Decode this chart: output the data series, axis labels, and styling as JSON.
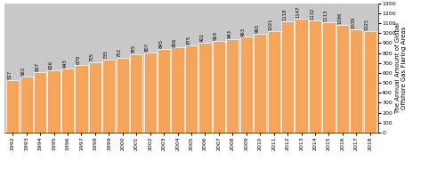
{
  "years": [
    1992,
    1993,
    1994,
    1995,
    1996,
    1997,
    1998,
    1999,
    2000,
    2001,
    2002,
    2003,
    2004,
    2005,
    2006,
    2007,
    2008,
    2009,
    2010,
    2011,
    2012,
    2013,
    2014,
    2015,
    2016,
    2017,
    2018
  ],
  "values": [
    527,
    563,
    607,
    626,
    645,
    679,
    705,
    735,
    752,
    785,
    807,
    845,
    856,
    875,
    902,
    924,
    943,
    963,
    993,
    1021,
    1118,
    1147,
    1132,
    1113,
    1086,
    1039,
    1021
  ],
  "bar_color": "#F5A55A",
  "bg_color": "#C8C8C8",
  "ylim": [
    0,
    1300
  ],
  "yticks": [
    0,
    100,
    200,
    300,
    400,
    500,
    600,
    700,
    800,
    900,
    1000,
    1100,
    1200,
    1300
  ],
  "ylabel_line1": "The Annual Amount of Global",
  "ylabel_line2": "Offshore Gas Flaring Areas",
  "bar_label_fontsize": 3.8,
  "tick_fontsize": 4.5,
  "ylabel_fontsize": 5.0
}
